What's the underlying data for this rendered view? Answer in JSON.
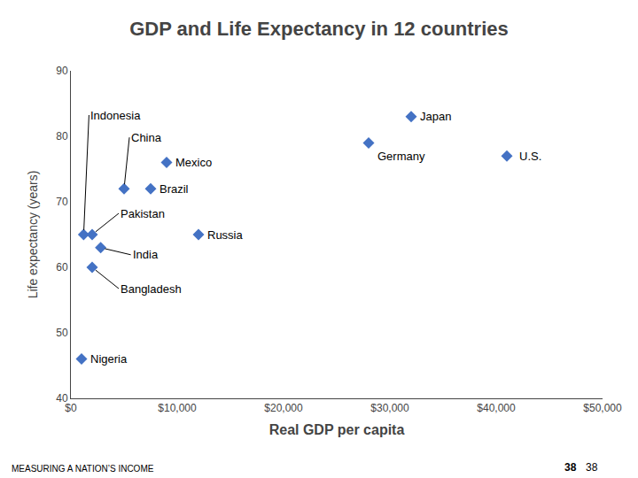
{
  "chart_data": {
    "type": "scatter",
    "title": "GDP and Life Expectancy in 12 countries",
    "xlabel": "Real GDP per capita",
    "ylabel": "Life expectancy (years)",
    "x": [
      1000,
      2000,
      2800,
      2000,
      1200,
      5000,
      7500,
      9000,
      12000,
      28000,
      32000,
      41000
    ],
    "values": [
      46,
      60,
      63,
      65,
      65,
      72,
      72,
      76,
      65,
      79,
      83,
      77
    ],
    "labels": [
      "Nigeria",
      "Bangladesh",
      "India",
      "Pakistan",
      "Indonesia",
      "China",
      "Brazil",
      "Mexico",
      "Russia",
      "Germany",
      "Japan",
      "U.S."
    ],
    "color": "#4472c4",
    "marker": "diamond",
    "xlim": [
      0,
      50000
    ],
    "ylim": [
      40,
      90
    ],
    "xticks": [
      {
        "value": 0,
        "label": "$0"
      },
      {
        "value": 10000,
        "label": "$10,000"
      },
      {
        "value": 20000,
        "label": "$20,000"
      },
      {
        "value": 30000,
        "label": "$30,000"
      },
      {
        "value": 40000,
        "label": "$40,000"
      },
      {
        "value": 50000,
        "label": "$50,000"
      }
    ],
    "yticks": [
      40,
      50,
      60,
      70,
      80,
      90
    ],
    "grid": false,
    "annotations": [
      "MEASURING A NATION’S INCOME",
      "38",
      "38"
    ]
  }
}
